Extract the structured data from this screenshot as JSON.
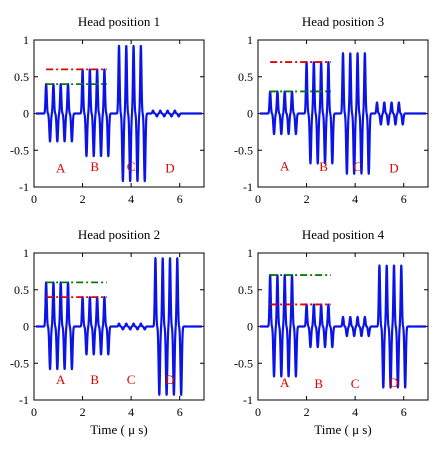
{
  "colors": {
    "signal": "#0a14e6",
    "dash_red": "#e00000",
    "dash_green": "#0a7a0a",
    "region_label": "#e00000",
    "axis": "#000000"
  },
  "chart_data": [
    {
      "type": "line",
      "title": "Head position 1",
      "xlabel": "",
      "xlim": [
        0,
        7
      ],
      "ylim": [
        -1,
        1
      ],
      "xticks": [
        "0",
        "2",
        "4",
        "6"
      ],
      "yticks": [
        "1",
        "0.5",
        "0",
        "-0.5",
        "-1"
      ],
      "regions": [
        {
          "label": "A",
          "x": 1.1,
          "y": -0.75
        },
        {
          "label": "B",
          "x": 2.5,
          "y": -0.73
        },
        {
          "label": "C",
          "x": 4.0,
          "y": -0.73
        },
        {
          "label": "D",
          "x": 5.6,
          "y": -0.75
        }
      ],
      "hlines": [
        {
          "y": 0.6,
          "x": [
            0.5,
            3.0
          ],
          "color": "red",
          "style": "dashdot"
        },
        {
          "y": 0.4,
          "x": [
            0.5,
            3.0
          ],
          "color": "green",
          "style": "dashdot"
        }
      ],
      "pulse_groups": [
        {
          "start": 0.5,
          "count": 4,
          "period": 0.3,
          "pos": 0.4,
          "neg": -0.38
        },
        {
          "start": 2.0,
          "count": 4,
          "period": 0.3,
          "pos": 0.6,
          "neg": -0.58
        },
        {
          "start": 3.5,
          "count": 4,
          "period": 0.3,
          "pos": 0.92,
          "neg": -0.92
        },
        {
          "start": 4.9,
          "count": 4,
          "period": 0.3,
          "pos": 0.04,
          "neg": -0.04
        }
      ]
    },
    {
      "type": "line",
      "title": "Head position 3",
      "xlabel": "",
      "xlim": [
        0,
        7
      ],
      "ylim": [
        -1,
        1
      ],
      "xticks": [
        "0",
        "2",
        "4",
        "6"
      ],
      "yticks": [
        "1",
        "0.5",
        "0",
        "-0.5",
        "-1"
      ],
      "regions": [
        {
          "label": "A",
          "x": 1.1,
          "y": -0.72
        },
        {
          "label": "B",
          "x": 2.7,
          "y": -0.73
        },
        {
          "label": "C",
          "x": 4.1,
          "y": -0.73
        },
        {
          "label": "D",
          "x": 5.6,
          "y": -0.75
        }
      ],
      "hlines": [
        {
          "y": 0.7,
          "x": [
            0.5,
            3.0
          ],
          "color": "red",
          "style": "dashdot"
        },
        {
          "y": 0.3,
          "x": [
            0.5,
            3.0
          ],
          "color": "green",
          "style": "dashdot"
        }
      ],
      "pulse_groups": [
        {
          "start": 0.5,
          "count": 4,
          "period": 0.3,
          "pos": 0.3,
          "neg": -0.28
        },
        {
          "start": 2.0,
          "count": 4,
          "period": 0.3,
          "pos": 0.7,
          "neg": -0.68
        },
        {
          "start": 3.5,
          "count": 4,
          "period": 0.3,
          "pos": 0.82,
          "neg": -0.82
        },
        {
          "start": 4.9,
          "count": 4,
          "period": 0.3,
          "pos": 0.15,
          "neg": -0.15
        }
      ]
    },
    {
      "type": "line",
      "title": "Head position 2",
      "xlabel": "Time ( μ s)",
      "xlim": [
        0,
        7
      ],
      "ylim": [
        -1,
        1
      ],
      "xticks": [
        "0",
        "2",
        "4",
        "6"
      ],
      "yticks": [
        "1",
        "0.5",
        "0",
        "-0.5",
        "-1"
      ],
      "regions": [
        {
          "label": "A",
          "x": 1.1,
          "y": -0.73
        },
        {
          "label": "B",
          "x": 2.5,
          "y": -0.73
        },
        {
          "label": "C",
          "x": 4.0,
          "y": -0.73
        },
        {
          "label": "D",
          "x": 5.6,
          "y": -0.73
        }
      ],
      "hlines": [
        {
          "y": 0.6,
          "x": [
            0.5,
            3.0
          ],
          "color": "green",
          "style": "dashdot"
        },
        {
          "y": 0.4,
          "x": [
            0.5,
            3.0
          ],
          "color": "red",
          "style": "dashdot"
        }
      ],
      "pulse_groups": [
        {
          "start": 0.5,
          "count": 4,
          "period": 0.3,
          "pos": 0.6,
          "neg": -0.58
        },
        {
          "start": 2.0,
          "count": 4,
          "period": 0.3,
          "pos": 0.4,
          "neg": -0.38
        },
        {
          "start": 3.5,
          "count": 4,
          "period": 0.3,
          "pos": 0.04,
          "neg": -0.04
        },
        {
          "start": 5.0,
          "count": 4,
          "period": 0.3,
          "pos": 0.93,
          "neg": -0.93
        }
      ]
    },
    {
      "type": "line",
      "title": "Head position 4",
      "xlabel": "Time ( μ s)",
      "xlim": [
        0,
        7
      ],
      "ylim": [
        -1,
        1
      ],
      "xticks": [
        "0",
        "2",
        "4",
        "6"
      ],
      "yticks": [
        "1",
        "0.5",
        "0",
        "-0.5",
        "-1"
      ],
      "regions": [
        {
          "label": "A",
          "x": 1.1,
          "y": -0.77
        },
        {
          "label": "B",
          "x": 2.5,
          "y": -0.78
        },
        {
          "label": "C",
          "x": 4.0,
          "y": -0.78
        },
        {
          "label": "D",
          "x": 5.6,
          "y": -0.77
        }
      ],
      "hlines": [
        {
          "y": 0.7,
          "x": [
            0.5,
            3.0
          ],
          "color": "green",
          "style": "dashdot"
        },
        {
          "y": 0.3,
          "x": [
            0.5,
            3.0
          ],
          "color": "red",
          "style": "dashdot"
        }
      ],
      "pulse_groups": [
        {
          "start": 0.5,
          "count": 4,
          "period": 0.3,
          "pos": 0.7,
          "neg": -0.68
        },
        {
          "start": 2.0,
          "count": 4,
          "period": 0.3,
          "pos": 0.3,
          "neg": -0.28
        },
        {
          "start": 3.5,
          "count": 4,
          "period": 0.3,
          "pos": 0.13,
          "neg": -0.13
        },
        {
          "start": 5.0,
          "count": 4,
          "period": 0.3,
          "pos": 0.83,
          "neg": -0.83
        }
      ]
    }
  ]
}
